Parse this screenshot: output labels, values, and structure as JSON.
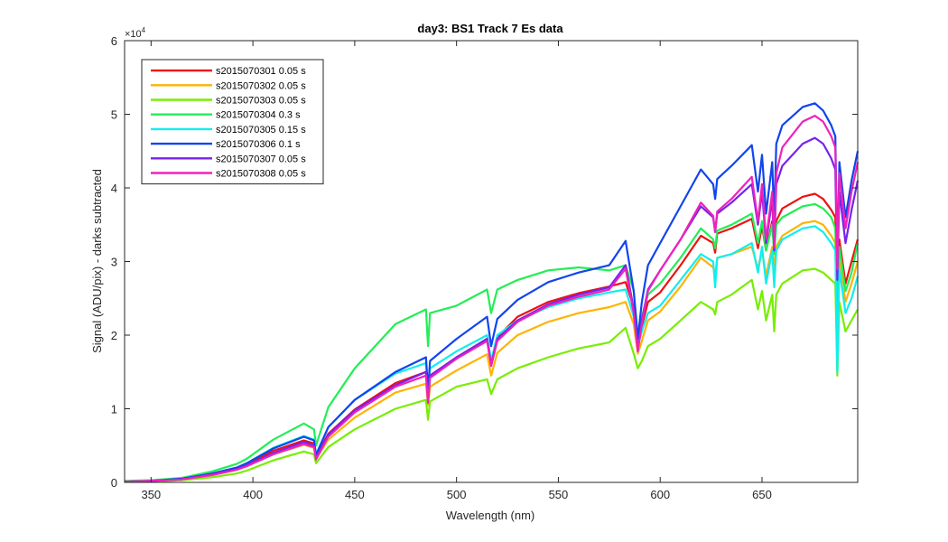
{
  "chart_data": {
    "type": "line",
    "title": "day3: BS1  Track 7 Es data",
    "xlabel": "Wavelength (nm)",
    "ylabel": "Signal (ADU/pix) - darks subtracted",
    "y_multiplier_label": "×10",
    "y_multiplier_exp": "4",
    "xlim": [
      337,
      697
    ],
    "ylim": [
      0,
      6
    ],
    "x_ticks": [
      350,
      400,
      450,
      500,
      550,
      600,
      650
    ],
    "y_ticks": [
      0,
      1,
      2,
      3,
      4,
      5,
      6
    ],
    "x_tick_labels": [
      "350",
      "400",
      "450",
      "500",
      "550",
      "600",
      "650"
    ],
    "y_tick_labels": [
      "0",
      "1",
      "2",
      "3",
      "4",
      "5",
      "6"
    ],
    "grid": false,
    "legend_position": "top-left",
    "x": [
      337,
      350,
      365,
      380,
      392,
      397,
      410,
      425,
      430,
      431,
      437,
      450,
      470,
      485,
      486,
      487,
      500,
      515,
      517,
      520,
      530,
      545,
      560,
      575,
      583,
      587,
      589,
      591,
      594,
      600,
      610,
      620,
      626,
      627,
      628,
      635,
      645,
      648,
      650,
      652,
      655,
      656,
      657,
      660,
      670,
      676,
      680,
      684,
      686,
      687,
      688,
      691,
      694,
      697
    ],
    "series": [
      {
        "name": "s2015070301 0.05 s",
        "color": "#ee1111",
        "values": [
          0.01,
          0.02,
          0.05,
          0.12,
          0.2,
          0.25,
          0.43,
          0.57,
          0.53,
          0.35,
          0.66,
          0.99,
          1.35,
          1.5,
          1.15,
          1.45,
          1.7,
          1.95,
          1.6,
          1.97,
          2.25,
          2.45,
          2.57,
          2.66,
          2.72,
          2.38,
          1.95,
          2.12,
          2.45,
          2.58,
          2.95,
          3.35,
          3.25,
          3.12,
          3.38,
          3.45,
          3.58,
          3.18,
          3.48,
          3.15,
          3.55,
          3.15,
          3.55,
          3.72,
          3.88,
          3.92,
          3.85,
          3.7,
          3.6,
          2.4,
          3.3,
          2.7,
          3.0,
          3.3
        ]
      },
      {
        "name": "s2015070302 0.05 s",
        "color": "#ffb300",
        "values": [
          0.01,
          0.02,
          0.04,
          0.1,
          0.17,
          0.22,
          0.38,
          0.51,
          0.47,
          0.32,
          0.58,
          0.88,
          1.22,
          1.34,
          1.05,
          1.3,
          1.52,
          1.74,
          1.45,
          1.76,
          2.0,
          2.18,
          2.3,
          2.38,
          2.45,
          2.15,
          1.75,
          1.92,
          2.2,
          2.32,
          2.66,
          3.05,
          2.92,
          2.82,
          3.05,
          3.1,
          3.2,
          2.9,
          3.15,
          2.8,
          3.2,
          2.9,
          3.2,
          3.35,
          3.52,
          3.55,
          3.5,
          3.35,
          3.25,
          2.15,
          3.0,
          2.45,
          2.7,
          3.0
        ]
      },
      {
        "name": "s2015070303 0.05 s",
        "color": "#77ee00",
        "values": [
          0.01,
          0.01,
          0.03,
          0.07,
          0.12,
          0.16,
          0.3,
          0.42,
          0.38,
          0.26,
          0.48,
          0.72,
          1.0,
          1.12,
          0.85,
          1.1,
          1.3,
          1.4,
          1.2,
          1.4,
          1.55,
          1.7,
          1.82,
          1.9,
          2.1,
          1.75,
          1.55,
          1.65,
          1.85,
          1.95,
          2.2,
          2.45,
          2.35,
          2.28,
          2.45,
          2.55,
          2.75,
          2.35,
          2.6,
          2.2,
          2.55,
          2.05,
          2.55,
          2.7,
          2.88,
          2.9,
          2.85,
          2.75,
          2.7,
          1.45,
          2.45,
          2.05,
          2.2,
          2.35
        ]
      },
      {
        "name": "s2015070304 0.3 s",
        "color": "#22ee55",
        "values": [
          0.02,
          0.03,
          0.06,
          0.15,
          0.25,
          0.32,
          0.58,
          0.8,
          0.72,
          0.5,
          1.02,
          1.55,
          2.15,
          2.35,
          1.85,
          2.3,
          2.4,
          2.62,
          2.3,
          2.62,
          2.75,
          2.88,
          2.92,
          2.88,
          2.95,
          2.6,
          2.0,
          2.25,
          2.55,
          2.7,
          3.05,
          3.45,
          3.3,
          3.18,
          3.42,
          3.5,
          3.65,
          3.25,
          3.55,
          3.15,
          3.5,
          3.1,
          3.5,
          3.6,
          3.75,
          3.78,
          3.72,
          3.6,
          3.45,
          2.3,
          3.2,
          2.6,
          2.85,
          3.25
        ]
      },
      {
        "name": "s2015070305 0.15 s",
        "color": "#11eeee",
        "values": [
          0.01,
          0.02,
          0.05,
          0.12,
          0.2,
          0.26,
          0.47,
          0.63,
          0.58,
          0.38,
          0.75,
          1.12,
          1.48,
          1.62,
          1.22,
          1.55,
          1.78,
          2.0,
          1.65,
          2.0,
          2.2,
          2.38,
          2.5,
          2.58,
          2.62,
          2.25,
          1.85,
          2.05,
          2.3,
          2.4,
          2.75,
          3.1,
          3.0,
          2.65,
          3.05,
          3.1,
          3.25,
          2.85,
          3.2,
          2.7,
          3.15,
          2.65,
          3.15,
          3.3,
          3.45,
          3.48,
          3.4,
          3.25,
          3.15,
          1.5,
          2.9,
          2.3,
          2.5,
          2.8
        ]
      },
      {
        "name": "s2015070306 0.1 s",
        "color": "#1144ee",
        "values": [
          0.01,
          0.02,
          0.05,
          0.12,
          0.2,
          0.26,
          0.46,
          0.62,
          0.57,
          0.37,
          0.75,
          1.12,
          1.5,
          1.7,
          1.25,
          1.65,
          1.95,
          2.25,
          1.85,
          2.22,
          2.48,
          2.72,
          2.85,
          2.95,
          3.28,
          2.6,
          1.95,
          2.45,
          2.95,
          3.25,
          3.75,
          4.25,
          4.05,
          3.85,
          4.12,
          4.3,
          4.58,
          3.95,
          4.45,
          3.65,
          4.35,
          3.55,
          4.6,
          4.85,
          5.1,
          5.15,
          5.05,
          4.85,
          4.7,
          3.0,
          4.35,
          3.6,
          4.1,
          4.5
        ]
      },
      {
        "name": "s2015070307 0.05 s",
        "color": "#7722ee",
        "values": [
          0.01,
          0.02,
          0.04,
          0.11,
          0.18,
          0.23,
          0.4,
          0.55,
          0.5,
          0.33,
          0.65,
          0.98,
          1.32,
          1.5,
          1.1,
          1.45,
          1.7,
          1.95,
          1.6,
          1.95,
          2.2,
          2.42,
          2.55,
          2.65,
          2.95,
          2.35,
          1.8,
          2.2,
          2.62,
          2.88,
          3.3,
          3.75,
          3.6,
          3.4,
          3.65,
          3.8,
          4.05,
          3.5,
          3.95,
          3.25,
          3.85,
          3.15,
          4.05,
          4.3,
          4.6,
          4.68,
          4.6,
          4.4,
          4.25,
          2.75,
          3.95,
          3.25,
          3.7,
          4.1
        ]
      },
      {
        "name": "s2015070308 0.05 s",
        "color": "#ee22bb",
        "values": [
          0.01,
          0.02,
          0.04,
          0.1,
          0.17,
          0.22,
          0.38,
          0.52,
          0.48,
          0.31,
          0.62,
          0.95,
          1.3,
          1.45,
          1.08,
          1.42,
          1.68,
          1.92,
          1.58,
          1.92,
          2.18,
          2.4,
          2.52,
          2.62,
          2.9,
          2.3,
          1.78,
          2.15,
          2.6,
          2.88,
          3.3,
          3.8,
          3.62,
          3.4,
          3.68,
          3.85,
          4.15,
          3.55,
          4.05,
          3.3,
          3.95,
          3.2,
          4.2,
          4.55,
          4.9,
          4.98,
          4.9,
          4.7,
          4.55,
          2.9,
          4.2,
          3.45,
          3.95,
          4.35
        ]
      }
    ]
  }
}
